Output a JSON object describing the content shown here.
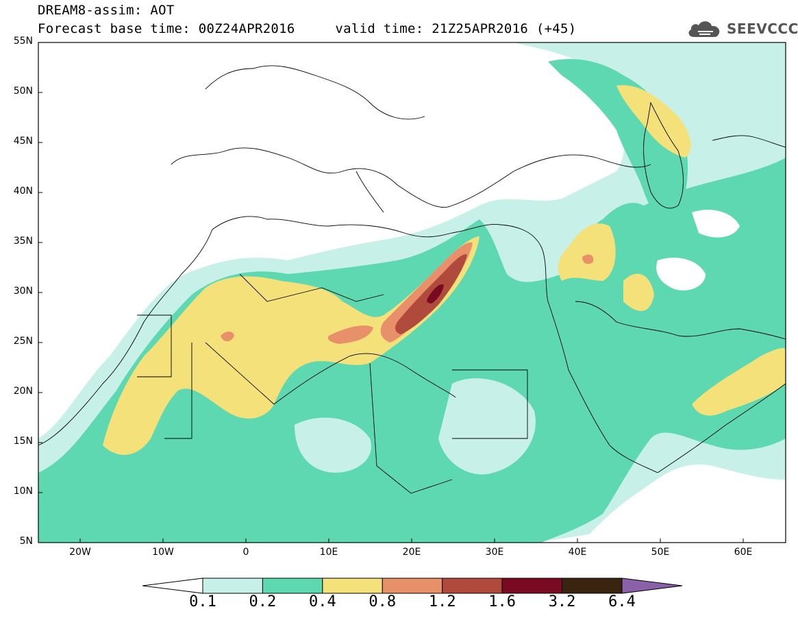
{
  "header": {
    "title": "DREAM8-assim: AOT",
    "base_time_label": "Forecast base time: 00Z24APR2016",
    "valid_time_label": "valid time: 21Z25APR2016 (+45)"
  },
  "logo": {
    "text": "SEEVCCC",
    "icon": "cloud-icon"
  },
  "map": {
    "y_ticks": [
      "55N",
      "50N",
      "45N",
      "40N",
      "35N",
      "30N",
      "25N",
      "20N",
      "15N",
      "10N",
      "5N"
    ],
    "x_ticks": [
      "20W",
      "10W",
      "0",
      "10E",
      "20E",
      "30E",
      "40E",
      "50E",
      "60E"
    ],
    "lat_range": [
      5,
      55
    ],
    "lon_range": [
      -25,
      65
    ]
  },
  "legend": {
    "labels": [
      "0.1",
      "0.2",
      "0.4",
      "0.8",
      "1.2",
      "1.6",
      "3.2",
      "6.4"
    ],
    "colors": [
      "#ffffff",
      "#c7f0e8",
      "#5dd8b0",
      "#f5e17a",
      "#e8906a",
      "#b04a3c",
      "#7a0a22",
      "#3a2410",
      "#8a60a8"
    ]
  }
}
